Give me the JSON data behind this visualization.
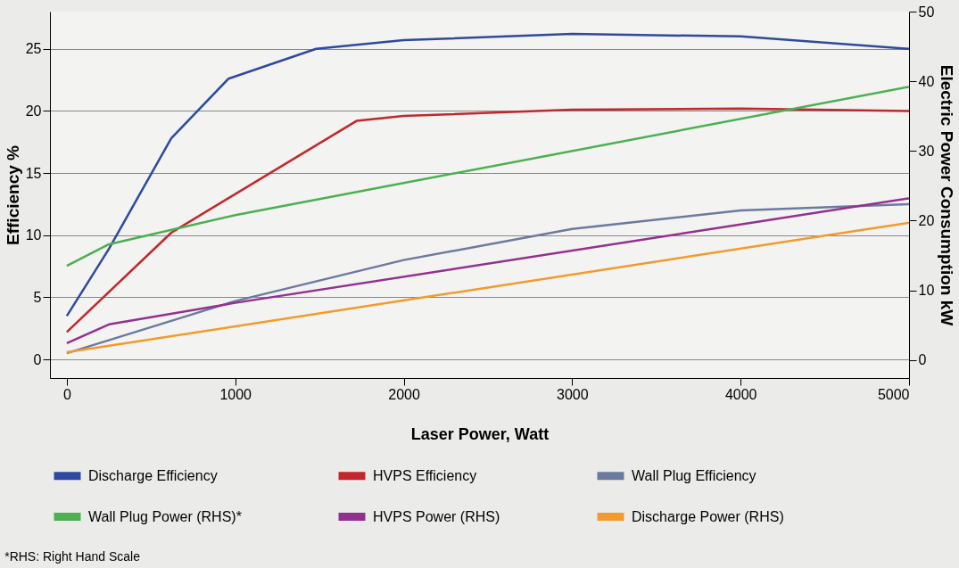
{
  "chart_data": {
    "type": "line",
    "xlabel": "Laser Power,  Watt",
    "ylabel": "Efficiency %",
    "y2label": "Electric Power Consumption kW",
    "xlim": [
      -100,
      5000
    ],
    "xticks": [
      0,
      1000,
      2000,
      3000,
      4000,
      5000
    ],
    "ylim": [
      -1.5,
      28
    ],
    "yticks": [
      0,
      5,
      10,
      15,
      20,
      25
    ],
    "y2lim": [
      -2.6,
      50
    ],
    "y2ticks": [
      0,
      10,
      20,
      30,
      40,
      50
    ],
    "grid": "y",
    "legend": "bottom",
    "marker": "none",
    "line_style": "solid",
    "annotations": [
      "*RHS: Right Hand Scale"
    ],
    "series": [
      {
        "name": "Discharge Efficiency",
        "color": "#2e4a9e",
        "x": [
          0,
          250,
          620,
          960,
          1480,
          2000,
          3000,
          4000,
          5000
        ],
        "values": [
          3.5,
          8.9,
          17.8,
          22.6,
          25,
          25.7,
          26.2,
          26,
          25
        ]
      },
      {
        "name": "HVPS Efficiency",
        "color": "#c0282d",
        "x": [
          0,
          620,
          1720,
          2000,
          3000,
          4000,
          5000
        ],
        "values": [
          2.2,
          10.2,
          19.2,
          19.6,
          20.1,
          20.2,
          20
        ]
      },
      {
        "name": "Wall Plug Efficiency",
        "color": "#6b7a9e",
        "x": [
          0,
          1000,
          2000,
          3000,
          4000,
          5000
        ],
        "values": [
          0.5,
          4.7,
          8,
          10.5,
          12,
          12.5
        ]
      },
      {
        "name": "Wall Plug Power (RHS)*",
        "color": "#4caf50",
        "axis": "y2",
        "x": [
          0,
          250,
          1000,
          5000
        ],
        "values": [
          13.5,
          16.6,
          20.8,
          39.2
        ]
      },
      {
        "name": "HVPS Power (RHS)",
        "color": "#93308f",
        "axis": "y2",
        "x": [
          0,
          250,
          1000,
          5000
        ],
        "values": [
          2.4,
          5.1,
          8.2,
          23.2
        ]
      },
      {
        "name": "Discharge Power (RHS)",
        "color": "#f39a2b",
        "axis": "y2",
        "x": [
          0,
          5000
        ],
        "values": [
          1.1,
          19.7
        ]
      }
    ]
  }
}
